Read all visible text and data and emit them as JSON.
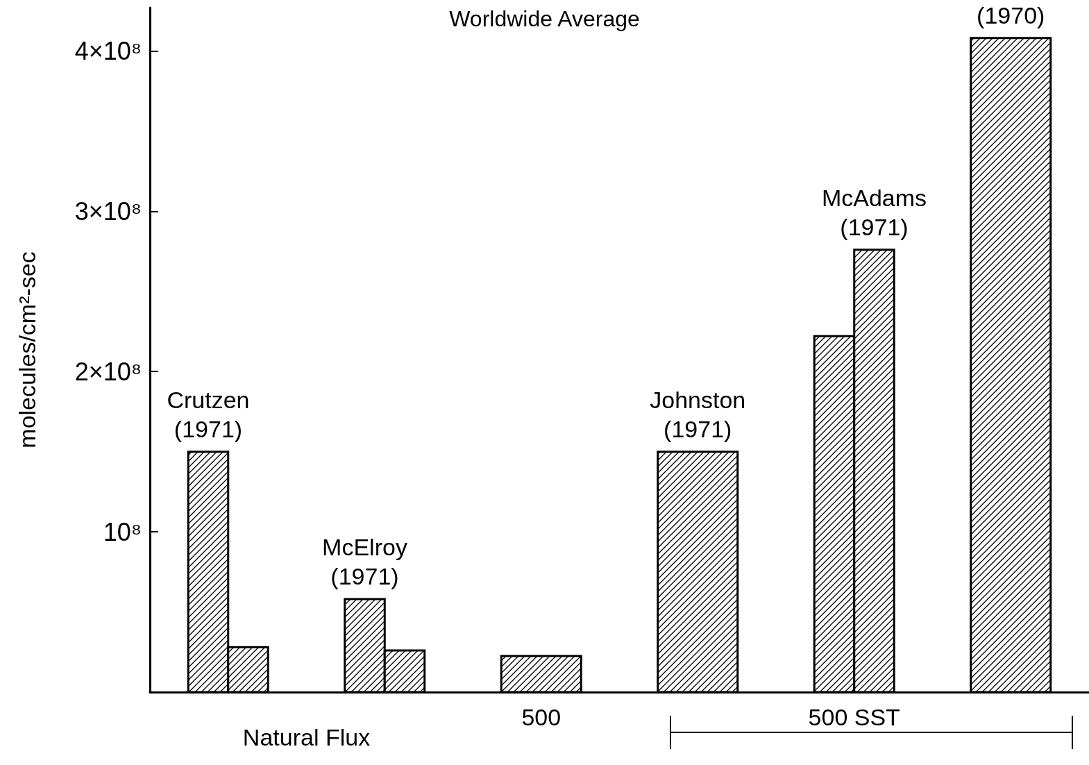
{
  "chart_data": {
    "type": "bar",
    "title": "Worldwide Average",
    "ylabel": "molecules/cm²-sec",
    "categories": [
      "Crutzen (1971)",
      "McElroy (1971)",
      null,
      "Johnston (1971)",
      "McAdams (1971)",
      "(1970)"
    ],
    "series": [
      {
        "color": "#000000",
        "values": [
          150000000,
          58000000,
          22500000,
          150000000,
          222000000,
          408000000
        ]
      },
      {
        "color": "#000000",
        "values": [
          28000000,
          26000000,
          null,
          null,
          276000000,
          null
        ]
      }
    ],
    "ylim": [
      0,
      427000000
    ],
    "yticks": [
      {
        "value": 100000000,
        "label": "10⁸"
      },
      {
        "value": 200000000,
        "label": "2×10⁸"
      },
      {
        "value": 300000000,
        "label": "3×10⁸"
      },
      {
        "value": 400000000,
        "label": "4×10⁸"
      }
    ],
    "grid": false,
    "annotations": [
      "Natural Flux",
      "500",
      "500 SST"
    ]
  }
}
